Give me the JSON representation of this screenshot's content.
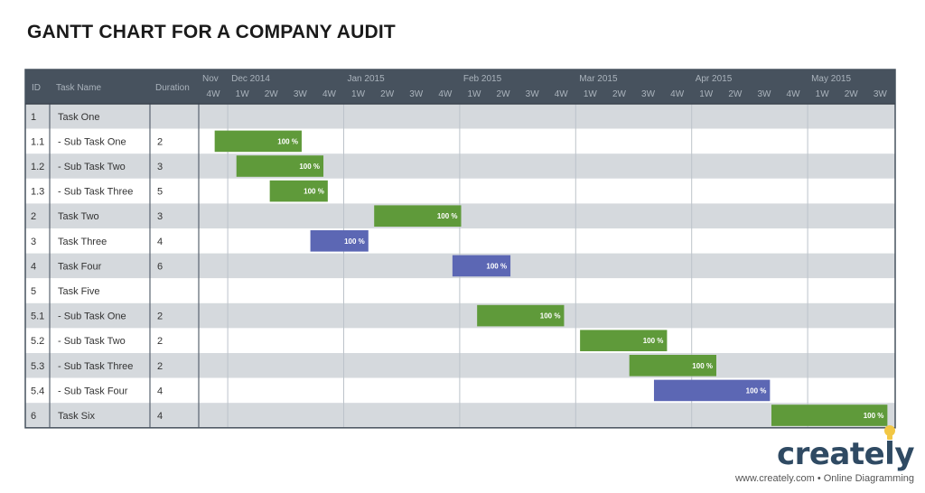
{
  "title": "GANTT CHART FOR A COMPANY AUDIT",
  "chart_data": {
    "type": "gantt",
    "columns": [
      "ID",
      "Task Name",
      "Duration"
    ],
    "months": [
      {
        "label": "Nov",
        "weeks": [
          "4W"
        ]
      },
      {
        "label": "Dec 2014",
        "weeks": [
          "1W",
          "2W",
          "3W",
          "4W"
        ]
      },
      {
        "label": "Jan 2015",
        "weeks": [
          "1W",
          "2W",
          "3W",
          "4W"
        ]
      },
      {
        "label": "Feb 2015",
        "weeks": [
          "1W",
          "2W",
          "3W",
          "4W"
        ]
      },
      {
        "label": "Mar 2015",
        "weeks": [
          "1W",
          "2W",
          "3W",
          "4W"
        ]
      },
      {
        "label": "Apr 2015",
        "weeks": [
          "1W",
          "2W",
          "3W",
          "4W"
        ]
      },
      {
        "label": "May 2015",
        "weeks": [
          "1W",
          "2W",
          "3W"
        ]
      }
    ],
    "tasks": [
      {
        "id": "1",
        "name": "Task One",
        "duration": "",
        "start": null,
        "length": null,
        "progress": null,
        "color": null
      },
      {
        "id": "1.1",
        "name": "  -  Sub Task One",
        "duration": "2",
        "start": 0.55,
        "length": 3.0,
        "progress": "100 %",
        "color": "green"
      },
      {
        "id": "1.2",
        "name": "  -  Sub Task Two",
        "duration": "3",
        "start": 1.3,
        "length": 3.0,
        "progress": "100 %",
        "color": "green"
      },
      {
        "id": "1.3",
        "name": "  -  Sub Task Three",
        "duration": "5",
        "start": 2.45,
        "length": 2.0,
        "progress": "100 %",
        "color": "green"
      },
      {
        "id": "2",
        "name": "Task Two",
        "duration": "3",
        "start": 6.05,
        "length": 3.0,
        "progress": "100 %",
        "color": "green"
      },
      {
        "id": "3",
        "name": "Task Three",
        "duration": "4",
        "start": 3.85,
        "length": 2.0,
        "progress": "100 %",
        "color": "purple"
      },
      {
        "id": "4",
        "name": "Task Four",
        "duration": "6",
        "start": 8.75,
        "length": 2.0,
        "progress": "100 %",
        "color": "purple"
      },
      {
        "id": "5",
        "name": "Task Five",
        "duration": "",
        "start": null,
        "length": null,
        "progress": null,
        "color": null
      },
      {
        "id": "5.1",
        "name": "  -  Sub Task One",
        "duration": "2",
        "start": 9.6,
        "length": 3.0,
        "progress": "100 %",
        "color": "green"
      },
      {
        "id": "5.2",
        "name": "  -  Sub Task Two",
        "duration": "2",
        "start": 13.15,
        "length": 3.0,
        "progress": "100 %",
        "color": "green"
      },
      {
        "id": "5.3",
        "name": "  -  Sub Task Three",
        "duration": "2",
        "start": 14.85,
        "length": 3.0,
        "progress": "100 %",
        "color": "green"
      },
      {
        "id": "5.4",
        "name": "  -  Sub Task Four",
        "duration": "4",
        "start": 15.7,
        "length": 4.0,
        "progress": "100 %",
        "color": "purple"
      },
      {
        "id": "6",
        "name": "Task Six",
        "duration": "4",
        "start": 19.75,
        "length": 4.0,
        "progress": "100 %",
        "color": "green"
      }
    ],
    "colors": {
      "green": "#5f9a3a",
      "purple": "#5c67b4",
      "header_bg": "#47525e",
      "header_text": "#aab3bc",
      "row_shaded": "#d5d9dd",
      "row_plain": "#ffffff"
    }
  },
  "logo": {
    "word": "creately",
    "url": "www.creately.com • Online Diagramming"
  }
}
